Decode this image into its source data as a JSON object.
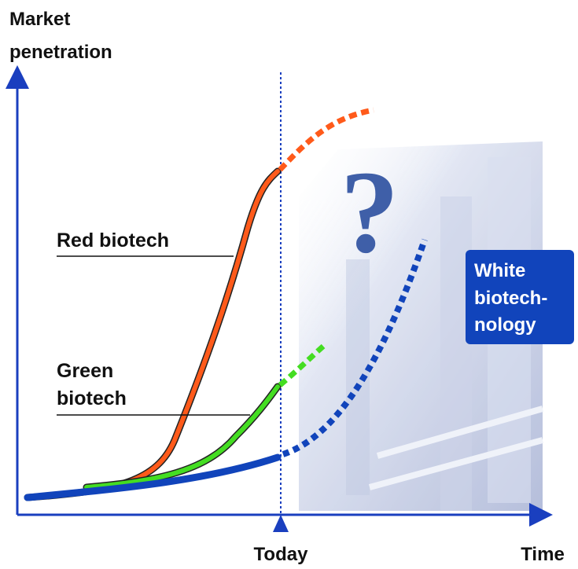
{
  "axes": {
    "y_label": [
      "Market",
      "penetration"
    ],
    "x_label": "Time",
    "today_label": "Today"
  },
  "curves": [
    {
      "label": [
        "Red biotech"
      ]
    },
    {
      "label": [
        "Green",
        "biotech"
      ]
    },
    {
      "label": [
        "White",
        "biotech-",
        "nology"
      ]
    }
  ],
  "question_mark": "?"
}
